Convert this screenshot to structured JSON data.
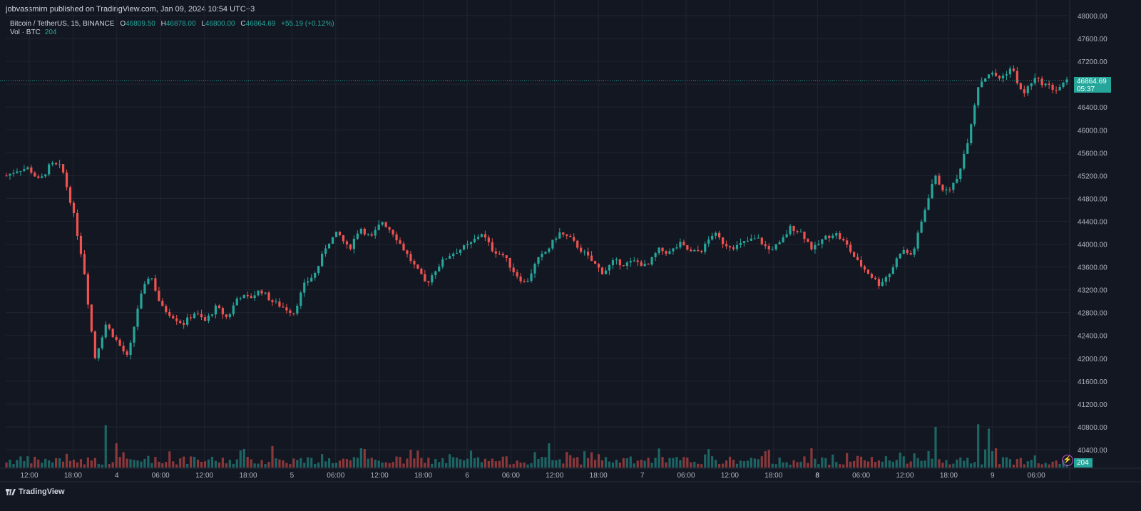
{
  "published": "jobvassmirn published on TradingView.com, Jan 09, 2024 10:54 UTC+3",
  "legend": {
    "symbol": "Bitcoin / TetherUS, 15, BINANCE",
    "o_label": "O",
    "o": "46809.50",
    "h_label": "H",
    "h": "46878.00",
    "l_label": "L",
    "l": "46800.00",
    "c_label": "C",
    "c": "46864.69",
    "change": "+55.19 (+0.12%)"
  },
  "volume": {
    "label": "Vol · BTC",
    "value": "204"
  },
  "last_price": {
    "price": "46864.69",
    "countdown": "05:37"
  },
  "footer": {
    "brand": "TradingView"
  },
  "colors": {
    "up": "#26a69a",
    "down": "#ef5350",
    "background": "#131722",
    "grid": "#1f2430",
    "axis_text": "#b2b5be",
    "accent_icon": "#c252d1"
  },
  "icons": [
    "lightning-icon",
    "tradingview-logo-icon"
  ],
  "chart_data": {
    "type": "candlestick",
    "title": "Bitcoin / TetherUS, 15, BINANCE",
    "xlabel": "",
    "ylabel": "",
    "ylim": [
      40000,
      48000
    ],
    "y_ticks": [
      "48000.00",
      "47600.00",
      "47200.00",
      "46800.00",
      "46400.00",
      "46000.00",
      "45600.00",
      "45200.00",
      "44800.00",
      "44400.00",
      "44000.00",
      "43600.00",
      "43200.00",
      "42800.00",
      "42400.00",
      "42000.00",
      "41600.00",
      "41200.00",
      "40800.00",
      "40400.00"
    ],
    "x_ticks": [
      "12:00",
      "18:00",
      "4",
      "06:00",
      "12:00",
      "18:00",
      "5",
      "06:00",
      "12:00",
      "18:00",
      "6",
      "06:00",
      "12:00",
      "18:00",
      "7",
      "06:00",
      "12:00",
      "18:00",
      "8",
      "06:00",
      "12:00",
      "18:00",
      "9",
      "06:00"
    ],
    "bold_x_ticks": [
      "8"
    ],
    "price_path_points": [
      [
        0,
        45200
      ],
      [
        1,
        45300
      ],
      [
        2,
        45330
      ],
      [
        3,
        45100
      ],
      [
        4,
        45400
      ],
      [
        5,
        45350
      ],
      [
        6,
        44600
      ],
      [
        7,
        43600
      ],
      [
        8,
        42000
      ],
      [
        9,
        42600
      ],
      [
        10,
        42300
      ],
      [
        11,
        42000
      ],
      [
        12,
        43000
      ],
      [
        13,
        43500
      ],
      [
        14,
        42900
      ],
      [
        15,
        42750
      ],
      [
        16,
        42600
      ],
      [
        17,
        42800
      ],
      [
        18,
        42650
      ],
      [
        19,
        42900
      ],
      [
        20,
        42700
      ],
      [
        21,
        43100
      ],
      [
        22,
        43050
      ],
      [
        23,
        43200
      ],
      [
        24,
        43000
      ],
      [
        25,
        42900
      ],
      [
        26,
        42800
      ],
      [
        27,
        43300
      ],
      [
        28,
        43500
      ],
      [
        29,
        44000
      ],
      [
        30,
        44200
      ],
      [
        31,
        43900
      ],
      [
        32,
        44300
      ],
      [
        33,
        44100
      ],
      [
        34,
        44400
      ],
      [
        35,
        44200
      ],
      [
        36,
        43900
      ],
      [
        37,
        43600
      ],
      [
        38,
        43300
      ],
      [
        39,
        43600
      ],
      [
        40,
        43800
      ],
      [
        41,
        43900
      ],
      [
        42,
        44000
      ],
      [
        43,
        44200
      ],
      [
        44,
        43900
      ],
      [
        45,
        43800
      ],
      [
        46,
        43500
      ],
      [
        47,
        43300
      ],
      [
        48,
        43700
      ],
      [
        49,
        43900
      ],
      [
        50,
        44200
      ],
      [
        51,
        44100
      ],
      [
        52,
        43900
      ],
      [
        53,
        43700
      ],
      [
        54,
        43500
      ],
      [
        55,
        43700
      ],
      [
        56,
        43650
      ],
      [
        57,
        43700
      ],
      [
        58,
        43600
      ],
      [
        59,
        43900
      ],
      [
        60,
        43850
      ],
      [
        61,
        44000
      ],
      [
        62,
        43850
      ],
      [
        63,
        43900
      ],
      [
        64,
        44200
      ],
      [
        65,
        44000
      ],
      [
        66,
        43950
      ],
      [
        67,
        44050
      ],
      [
        68,
        44100
      ],
      [
        69,
        43900
      ],
      [
        70,
        44000
      ],
      [
        71,
        44300
      ],
      [
        72,
        44200
      ],
      [
        73,
        43900
      ],
      [
        74,
        44100
      ],
      [
        75,
        44200
      ],
      [
        76,
        44000
      ],
      [
        77,
        43700
      ],
      [
        78,
        43500
      ],
      [
        79,
        43300
      ],
      [
        80,
        43500
      ],
      [
        81,
        43900
      ],
      [
        82,
        43800
      ],
      [
        83,
        44500
      ],
      [
        84,
        45200
      ],
      [
        85,
        44900
      ],
      [
        86,
        45100
      ],
      [
        87,
        45800
      ],
      [
        88,
        46800
      ],
      [
        89,
        47000
      ],
      [
        90,
        46900
      ],
      [
        91,
        47100
      ],
      [
        92,
        46600
      ],
      [
        93,
        46900
      ],
      [
        94,
        46800
      ],
      [
        95,
        46700
      ],
      [
        96,
        46850
      ]
    ],
    "volume_spikes": [
      [
        9,
        "high"
      ],
      [
        10,
        "medium"
      ],
      [
        24,
        "medium"
      ],
      [
        49,
        "medium"
      ],
      [
        84,
        "high"
      ],
      [
        88,
        "high"
      ],
      [
        89,
        "high"
      ]
    ],
    "last_close": 46864.69,
    "grid": true,
    "legend_position": "top-left"
  }
}
